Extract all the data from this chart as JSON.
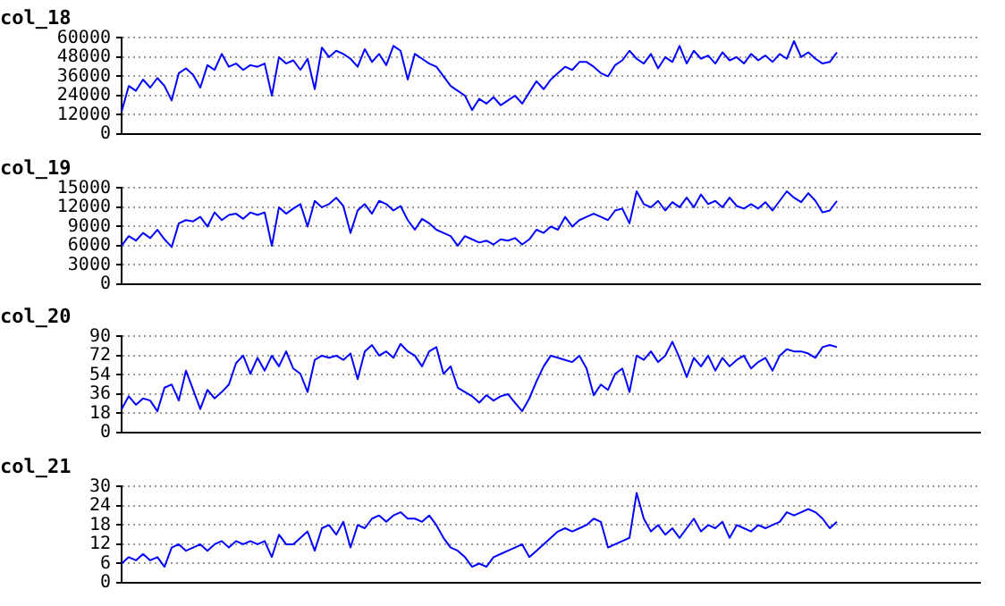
{
  "chart_data": [
    {
      "type": "line",
      "title": "col_18",
      "categories": [
        null,
        null,
        null,
        null,
        null,
        null,
        null,
        null,
        null,
        null,
        null,
        null,
        null,
        null,
        null,
        null,
        null,
        null,
        null,
        null,
        null,
        null,
        null,
        null,
        null,
        null,
        null,
        null,
        null,
        null,
        null,
        null,
        null,
        null,
        null,
        null,
        null,
        null,
        null,
        null,
        null,
        null,
        null,
        null,
        null,
        null,
        null,
        null,
        null,
        null,
        null,
        null,
        null,
        null,
        null,
        null,
        null,
        null,
        null,
        null,
        null,
        null,
        null,
        null,
        null,
        null,
        null,
        null,
        null,
        null,
        null,
        null,
        null,
        null,
        null,
        null,
        null,
        null,
        null,
        null,
        null,
        null,
        null,
        null,
        null,
        null,
        null,
        null,
        null,
        null,
        null,
        null,
        null,
        null,
        null,
        null,
        null,
        null,
        null,
        null,
        null,
        null,
        null,
        null,
        null,
        null,
        null,
        null,
        null,
        null,
        null,
        null,
        null,
        null,
        null,
        null,
        null,
        null,
        null,
        null,
        null
      ],
      "series": [
        {
          "color": "#0000ff",
          "values": [
            14000,
            30000,
            27000,
            34000,
            29000,
            35000,
            30000,
            21000,
            38000,
            41000,
            37000,
            29000,
            43000,
            40000,
            50000,
            42000,
            44000,
            40000,
            43000,
            42000,
            44000,
            24000,
            48000,
            44000,
            46000,
            40000,
            47000,
            28000,
            54000,
            48000,
            52000,
            50000,
            47000,
            42000,
            53000,
            45000,
            50000,
            43000,
            55000,
            52000,
            34000,
            50000,
            47000,
            44000,
            42000,
            36000,
            30000,
            27000,
            24000,
            15000,
            22000,
            19000,
            23000,
            18000,
            21000,
            24000,
            19000,
            26000,
            33000,
            28000,
            34000,
            38000,
            42000,
            40000,
            45000,
            45000,
            42000,
            38000,
            36000,
            43000,
            46000,
            52000,
            47000,
            44000,
            50000,
            41000,
            48000,
            45000,
            55000,
            44000,
            52000,
            47000,
            49000,
            44000,
            51000,
            46000,
            48000,
            44000,
            50000,
            46000,
            49000,
            45000,
            50000,
            47000,
            58000,
            48000,
            51000,
            47000,
            44000,
            45000,
            51000,
            null,
            null,
            null,
            null,
            null,
            null,
            null,
            null,
            null,
            null,
            null,
            null,
            null,
            null,
            null,
            null,
            null,
            null,
            null,
            null
          ]
        }
      ],
      "ylim": [
        0,
        60000
      ],
      "yticks": [
        0,
        12000,
        24000,
        36000,
        48000,
        60000
      ],
      "grid": "y",
      "tick_labels": "y",
      "marker": "none",
      "line_style": "solid"
    },
    {
      "type": "line",
      "title": "col_19",
      "categories": [
        null,
        null,
        null,
        null,
        null,
        null,
        null,
        null,
        null,
        null,
        null,
        null,
        null,
        null,
        null,
        null,
        null,
        null,
        null,
        null,
        null,
        null,
        null,
        null,
        null,
        null,
        null,
        null,
        null,
        null,
        null,
        null,
        null,
        null,
        null,
        null,
        null,
        null,
        null,
        null,
        null,
        null,
        null,
        null,
        null,
        null,
        null,
        null,
        null,
        null,
        null,
        null,
        null,
        null,
        null,
        null,
        null,
        null,
        null,
        null,
        null,
        null,
        null,
        null,
        null,
        null,
        null,
        null,
        null,
        null,
        null,
        null,
        null,
        null,
        null,
        null,
        null,
        null,
        null,
        null,
        null,
        null,
        null,
        null,
        null,
        null,
        null,
        null,
        null,
        null,
        null,
        null,
        null,
        null,
        null,
        null,
        null,
        null,
        null,
        null,
        null,
        null,
        null,
        null,
        null,
        null,
        null,
        null,
        null,
        null,
        null,
        null,
        null,
        null,
        null,
        null,
        null,
        null,
        null,
        null,
        null
      ],
      "series": [
        {
          "color": "#0000ff",
          "values": [
            6000,
            7500,
            6800,
            8000,
            7200,
            8500,
            7000,
            5800,
            9500,
            10000,
            9800,
            10500,
            9000,
            11200,
            10000,
            10800,
            11000,
            10200,
            11200,
            10800,
            11200,
            6000,
            12000,
            11000,
            11800,
            12500,
            9000,
            13000,
            12000,
            12500,
            13500,
            12200,
            8000,
            11500,
            12500,
            11000,
            13000,
            12500,
            11500,
            12200,
            10000,
            8500,
            10200,
            9500,
            8500,
            8000,
            7500,
            6000,
            7500,
            7000,
            6500,
            6800,
            6200,
            7000,
            6800,
            7200,
            6200,
            7000,
            8500,
            8000,
            9000,
            8500,
            10500,
            9000,
            10000,
            10500,
            11000,
            10500,
            10000,
            11500,
            11800,
            9500,
            14500,
            12500,
            12000,
            13000,
            11500,
            12800,
            12000,
            13500,
            12000,
            14000,
            12500,
            13000,
            12000,
            13500,
            12200,
            11800,
            12500,
            11800,
            12800,
            11500,
            13000,
            14500,
            13500,
            12800,
            14200,
            13000,
            11200,
            11500,
            13000,
            null,
            null,
            null,
            null,
            null,
            null,
            null,
            null,
            null,
            null,
            null,
            null,
            null,
            null,
            null,
            null,
            null,
            null,
            null,
            null
          ]
        }
      ],
      "ylim": [
        0,
        15000
      ],
      "yticks": [
        0,
        3000,
        6000,
        9000,
        12000,
        15000
      ],
      "grid": "y",
      "tick_labels": "y",
      "marker": "none",
      "line_style": "solid"
    },
    {
      "type": "line",
      "title": "col_20",
      "categories": [
        null,
        null,
        null,
        null,
        null,
        null,
        null,
        null,
        null,
        null,
        null,
        null,
        null,
        null,
        null,
        null,
        null,
        null,
        null,
        null,
        null,
        null,
        null,
        null,
        null,
        null,
        null,
        null,
        null,
        null,
        null,
        null,
        null,
        null,
        null,
        null,
        null,
        null,
        null,
        null,
        null,
        null,
        null,
        null,
        null,
        null,
        null,
        null,
        null,
        null,
        null,
        null,
        null,
        null,
        null,
        null,
        null,
        null,
        null,
        null,
        null,
        null,
        null,
        null,
        null,
        null,
        null,
        null,
        null,
        null,
        null,
        null,
        null,
        null,
        null,
        null,
        null,
        null,
        null,
        null,
        null,
        null,
        null,
        null,
        null,
        null,
        null,
        null,
        null,
        null,
        null,
        null,
        null,
        null,
        null,
        null,
        null,
        null,
        null,
        null,
        null,
        null,
        null,
        null,
        null,
        null,
        null,
        null,
        null,
        null,
        null,
        null,
        null,
        null,
        null,
        null,
        null,
        null,
        null,
        null,
        null
      ],
      "series": [
        {
          "color": "#0000ff",
          "values": [
            22,
            34,
            26,
            32,
            30,
            20,
            42,
            45,
            30,
            58,
            40,
            22,
            40,
            32,
            38,
            45,
            65,
            72,
            55,
            70,
            58,
            72,
            62,
            76,
            60,
            55,
            38,
            68,
            72,
            70,
            72,
            68,
            74,
            50,
            76,
            82,
            72,
            76,
            70,
            83,
            76,
            72,
            62,
            76,
            80,
            55,
            62,
            42,
            38,
            34,
            28,
            35,
            30,
            34,
            36,
            28,
            20,
            32,
            48,
            62,
            72,
            70,
            68,
            66,
            72,
            60,
            35,
            45,
            40,
            55,
            60,
            38,
            72,
            68,
            76,
            66,
            72,
            85,
            70,
            52,
            70,
            62,
            72,
            58,
            70,
            62,
            68,
            72,
            60,
            66,
            70,
            58,
            72,
            78,
            76,
            76,
            74,
            70,
            80,
            82,
            80,
            null,
            null,
            null,
            null,
            null,
            null,
            null,
            null,
            null,
            null,
            null,
            null,
            null,
            null,
            null,
            null,
            null,
            null,
            null,
            null
          ]
        }
      ],
      "ylim": [
        0,
        90
      ],
      "yticks": [
        0,
        18,
        36,
        54,
        72,
        90
      ],
      "grid": "y",
      "tick_labels": "y",
      "marker": "none",
      "line_style": "solid"
    },
    {
      "type": "line",
      "title": "col_21",
      "categories": [
        null,
        null,
        null,
        null,
        null,
        null,
        null,
        null,
        null,
        null,
        null,
        null,
        null,
        null,
        null,
        null,
        null,
        null,
        null,
        null,
        null,
        null,
        null,
        null,
        null,
        null,
        null,
        null,
        null,
        null,
        null,
        null,
        null,
        null,
        null,
        null,
        null,
        null,
        null,
        null,
        null,
        null,
        null,
        null,
        null,
        null,
        null,
        null,
        null,
        null,
        null,
        null,
        null,
        null,
        null,
        null,
        null,
        null,
        null,
        null,
        null,
        null,
        null,
        null,
        null,
        null,
        null,
        null,
        null,
        null,
        null,
        null,
        null,
        null,
        null,
        null,
        null,
        null,
        null,
        null,
        null,
        null,
        null,
        null,
        null,
        null,
        null,
        null,
        null,
        null,
        null,
        null,
        null,
        null,
        null,
        null,
        null,
        null,
        null,
        null,
        null,
        null,
        null,
        null,
        null,
        null,
        null,
        null,
        null,
        null,
        null,
        null,
        null,
        null,
        null,
        null,
        null,
        null,
        null,
        null,
        null
      ],
      "series": [
        {
          "color": "#0000ff",
          "values": [
            6,
            8,
            7,
            9,
            7,
            8,
            5,
            11,
            12,
            10,
            11,
            12,
            10,
            12,
            13,
            11,
            13,
            12,
            13,
            12,
            13,
            8,
            15,
            12,
            12,
            14,
            16,
            10,
            17,
            18,
            15,
            19,
            11,
            18,
            17,
            20,
            21,
            19,
            21,
            22,
            20,
            20,
            19,
            21,
            18,
            14,
            11,
            10,
            8,
            5,
            6,
            5,
            8,
            9,
            10,
            11,
            12,
            8,
            10,
            12,
            14,
            16,
            17,
            16,
            17,
            18,
            20,
            19,
            11,
            12,
            13,
            14,
            28,
            20,
            16,
            18,
            15,
            17,
            14,
            17,
            20,
            16,
            18,
            17,
            19,
            14,
            18,
            17,
            16,
            18,
            17,
            18,
            19,
            22,
            21,
            22,
            23,
            22,
            20,
            17,
            19,
            null,
            null,
            null,
            null,
            null,
            null,
            null,
            null,
            null,
            null,
            null,
            null,
            null,
            null,
            null,
            null,
            null,
            null,
            null,
            null
          ]
        }
      ],
      "ylim": [
        0,
        30
      ],
      "yticks": [
        0,
        6,
        12,
        18,
        24,
        30
      ],
      "grid": "y",
      "tick_labels": "y",
      "marker": "none",
      "line_style": "solid"
    }
  ]
}
